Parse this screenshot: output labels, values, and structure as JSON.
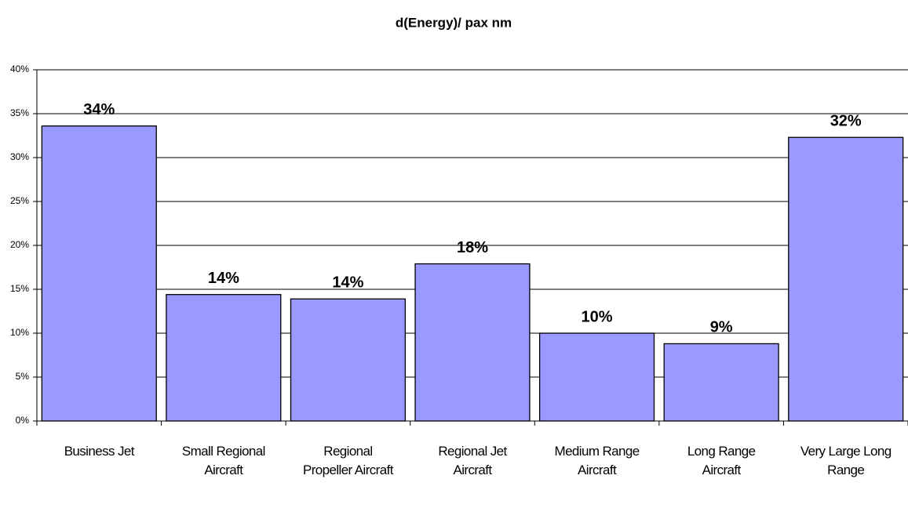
{
  "chart_data": {
    "type": "bar",
    "title": "d(Energy)/ pax nm",
    "categories": [
      "Business Jet",
      "Small Regional Aircraft",
      "Regional Propeller Aircraft",
      "Regional Jet Aircraft",
      "Medium Range Aircraft",
      "Long Range Aircraft",
      "Very Large Long Range"
    ],
    "values": [
      33.6,
      14.4,
      13.9,
      17.9,
      10.0,
      8.8,
      32.3
    ],
    "value_labels": [
      "34%",
      "14%",
      "14%",
      "18%",
      "10%",
      "9%",
      "32%"
    ],
    "color": "#9999ff",
    "ylim": [
      0,
      40
    ],
    "yticks": [
      {
        "value": 0,
        "label": "0%"
      },
      {
        "value": 5,
        "label": "5%"
      },
      {
        "value": 10,
        "label": "10%"
      },
      {
        "value": 15,
        "label": "15%"
      },
      {
        "value": 20,
        "label": "20%"
      },
      {
        "value": 25,
        "label": "25%"
      },
      {
        "value": 30,
        "label": "30%"
      },
      {
        "value": 35,
        "label": "35%"
      },
      {
        "value": 40,
        "label": "40%"
      }
    ],
    "grid": true
  }
}
